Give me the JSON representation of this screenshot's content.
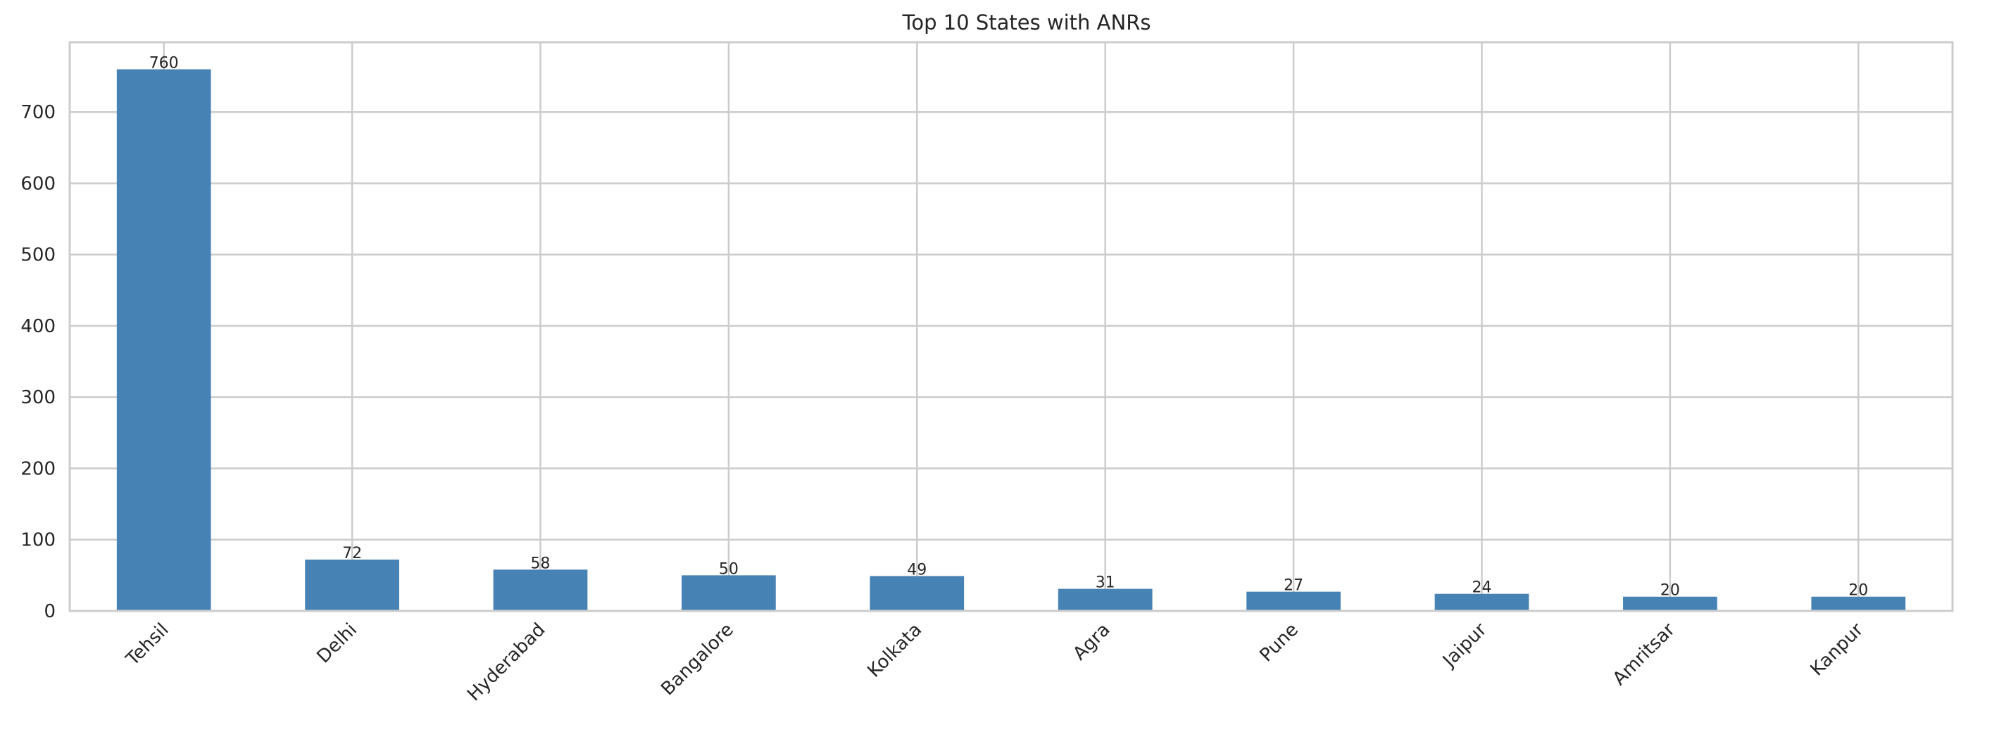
{
  "chart_data": {
    "type": "bar",
    "title": "Top 10 States with ANRs",
    "xlabel": "",
    "ylabel": "",
    "categories": [
      "Tehsil",
      "Delhi",
      "Hyderabad",
      "Bangalore",
      "Kolkata",
      "Agra",
      "Pune",
      "Jaipur",
      "Amritsar",
      "Kanpur"
    ],
    "values": [
      760,
      72,
      58,
      50,
      49,
      31,
      27,
      24,
      20,
      20
    ],
    "data_labels": [
      "760",
      "72",
      "58",
      "50",
      "49",
      "31",
      "27",
      "24",
      "20",
      "20"
    ],
    "ylim": [
      0,
      798
    ],
    "yticks": [
      0,
      100,
      200,
      300,
      400,
      500,
      600,
      700
    ],
    "ytick_labels": [
      "0",
      "100",
      "200",
      "300",
      "400",
      "500",
      "600",
      "700"
    ],
    "grid": true,
    "legend": "none",
    "x_tick_rotation_deg": 45,
    "bar_color": "#4682b4",
    "grid_color": "#cccccc",
    "spine_color": "#cccccc",
    "text_color": "#262626"
  }
}
